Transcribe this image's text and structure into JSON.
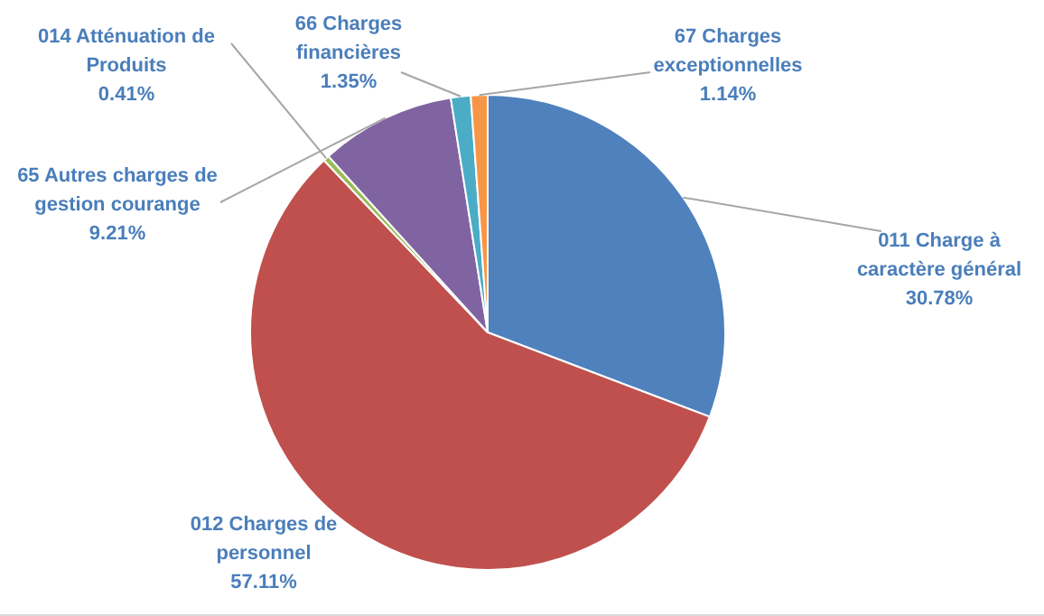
{
  "chart_data": {
    "type": "pie",
    "categories": [
      "011 Charge à caractère général",
      "012 Charges de personnel",
      "014 Atténuation de Produits",
      "65 Autres charges de gestion courange",
      "66 Charges financières",
      "67 Charges exceptionnelles"
    ],
    "values": [
      30.78,
      57.11,
      0.41,
      9.21,
      1.35,
      1.14
    ],
    "value_labels": [
      "30.78%",
      "57.11%",
      "0.41%",
      "9.21%",
      "1.35%",
      "1.14%"
    ],
    "colors": [
      "#4f81bd",
      "#c0504d",
      "#9bbb59",
      "#8064a2",
      "#4bacc6",
      "#f79646"
    ],
    "legend": false
  }
}
